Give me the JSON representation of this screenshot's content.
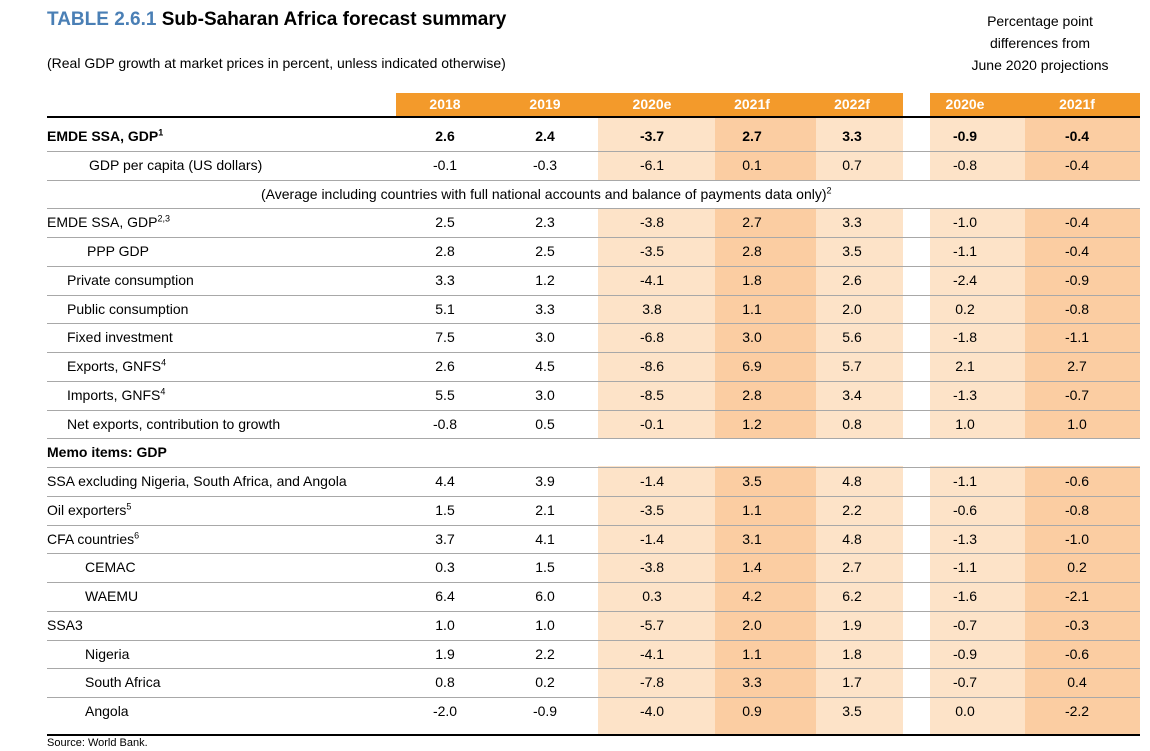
{
  "title": {
    "number": "TABLE 2.6.1",
    "text": "Sub-Saharan Africa forecast summary"
  },
  "subtitle": "(Real GDP growth at market prices in percent, unless indicated otherwise)",
  "diff_header": [
    "Percentage point",
    "differences from",
    "June 2020 projections"
  ],
  "columns": [
    "2018",
    "2019",
    "2020e",
    "2021f",
    "2022f"
  ],
  "diff_columns": [
    "2020e",
    "2021f"
  ],
  "rows_top": [
    {
      "label": "EMDE SSA, GDP",
      "sup": "1",
      "values": [
        "2.6",
        "2.4",
        "-3.7",
        "2.7",
        "3.3"
      ],
      "diffs": [
        "-0.9",
        "-0.4"
      ],
      "bold": true
    },
    {
      "label": "GDP per capita (US dollars)",
      "values": [
        "-0.1",
        "-0.3",
        "-6.1",
        "0.1",
        "0.7"
      ],
      "diffs": [
        "-0.8",
        "-0.4"
      ]
    }
  ],
  "note": {
    "text": "(Average including countries with full national accounts and balance of payments data only)",
    "sup": "2"
  },
  "rows_main": [
    {
      "label": "EMDE SSA, GDP",
      "sup": "2,3",
      "values": [
        "2.5",
        "2.3",
        "-3.8",
        "2.7",
        "3.3"
      ],
      "diffs": [
        "-1.0",
        "-0.4"
      ]
    },
    {
      "label": "PPP GDP",
      "values": [
        "2.8",
        "2.5",
        "-3.5",
        "2.8",
        "3.5"
      ],
      "diffs": [
        "-1.1",
        "-0.4"
      ]
    },
    {
      "label": "Private consumption",
      "values": [
        "3.3",
        "1.2",
        "-4.1",
        "1.8",
        "2.6"
      ],
      "diffs": [
        "-2.4",
        "-0.9"
      ]
    },
    {
      "label": "Public consumption",
      "values": [
        "5.1",
        "3.3",
        "3.8",
        "1.1",
        "2.0"
      ],
      "diffs": [
        "0.2",
        "-0.8"
      ]
    },
    {
      "label": "Fixed investment",
      "values": [
        "7.5",
        "3.0",
        "-6.8",
        "3.0",
        "5.6"
      ],
      "diffs": [
        "-1.8",
        "-1.1"
      ]
    },
    {
      "label": "Exports, GNFS",
      "sup": "4",
      "values": [
        "2.6",
        "4.5",
        "-8.6",
        "6.9",
        "5.7"
      ],
      "diffs": [
        "2.1",
        "2.7"
      ]
    },
    {
      "label": "Imports, GNFS",
      "sup": "4",
      "values": [
        "5.5",
        "3.0",
        "-8.5",
        "2.8",
        "3.4"
      ],
      "diffs": [
        "-1.3",
        "-0.7"
      ]
    },
    {
      "label": "Net exports, contribution to growth",
      "values": [
        "-0.8",
        "0.5",
        "-0.1",
        "1.2",
        "0.8"
      ],
      "diffs": [
        "1.0",
        "1.0"
      ]
    }
  ],
  "memo_label": "Memo items: GDP",
  "rows_memo": [
    {
      "label": "SSA excluding Nigeria, South Africa, and Angola",
      "values": [
        "4.4",
        "3.9",
        "-1.4",
        "3.5",
        "4.8"
      ],
      "diffs": [
        "-1.1",
        "-0.6"
      ]
    },
    {
      "label": "Oil exporters",
      "sup": "5",
      "values": [
        "1.5",
        "2.1",
        "-3.5",
        "1.1",
        "2.2"
      ],
      "diffs": [
        "-0.6",
        "-0.8"
      ]
    },
    {
      "label": "CFA countries",
      "sup": "6",
      "values": [
        "3.7",
        "4.1",
        "-1.4",
        "3.1",
        "4.8"
      ],
      "diffs": [
        "-1.3",
        "-1.0"
      ]
    },
    {
      "label": "CEMAC",
      "values": [
        "0.3",
        "1.5",
        "-3.8",
        "1.4",
        "2.7"
      ],
      "diffs": [
        "-1.1",
        "0.2"
      ]
    },
    {
      "label": "WAEMU",
      "values": [
        "6.4",
        "6.0",
        "0.3",
        "4.2",
        "6.2"
      ],
      "diffs": [
        "-1.6",
        "-2.1"
      ]
    },
    {
      "label": "SSA3",
      "values": [
        "1.0",
        "1.0",
        "-5.7",
        "2.0",
        "1.9"
      ],
      "diffs": [
        "-0.7",
        "-0.3"
      ]
    },
    {
      "label": "Nigeria",
      "values": [
        "1.9",
        "2.2",
        "-4.1",
        "1.1",
        "1.8"
      ],
      "diffs": [
        "-0.9",
        "-0.6"
      ]
    },
    {
      "label": "South Africa",
      "values": [
        "0.8",
        "0.2",
        "-7.8",
        "3.3",
        "1.7"
      ],
      "diffs": [
        "-0.7",
        "0.4"
      ]
    },
    {
      "label": "Angola",
      "values": [
        "-2.0",
        "-0.9",
        "-4.0",
        "0.9",
        "3.5"
      ],
      "diffs": [
        "0.0",
        "-2.2"
      ]
    }
  ],
  "source": "Source: World Bank.",
  "colors": {
    "title_accent": "#4a7fb5",
    "header_bg": "#f39a2b",
    "shade_light": "#fde3c8",
    "shade_dark": "#fbcda2"
  }
}
